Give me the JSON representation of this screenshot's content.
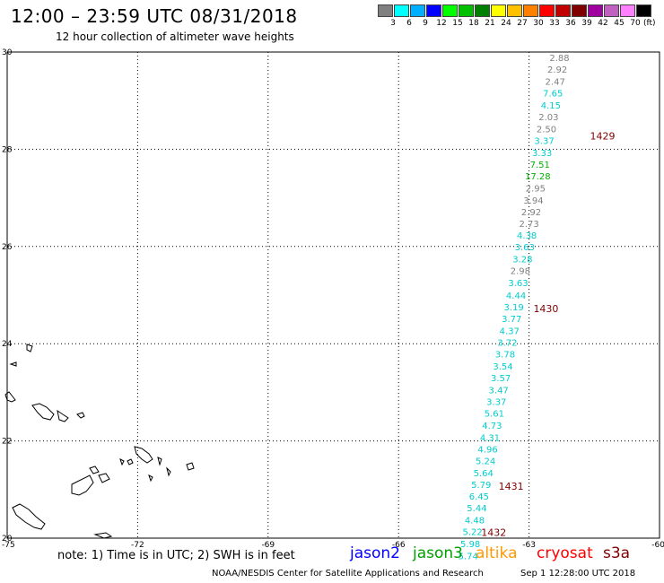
{
  "header": {
    "title": "12:00 – 23:59 UTC 08/31/2018",
    "subtitle": "12 hour collection of altimeter wave heights"
  },
  "legend": {
    "colors": [
      "#808080",
      "#00ffff",
      "#00b0ff",
      "#0000ff",
      "#00ff00",
      "#00c000",
      "#008000",
      "#ffff00",
      "#ffc000",
      "#ff8000",
      "#ff0000",
      "#c00000",
      "#800000",
      "#a000a0",
      "#c060c0",
      "#ff80ff",
      "#000000"
    ],
    "labels": [
      "3",
      "6",
      "9",
      "12",
      "15",
      "18",
      "21",
      "24",
      "27",
      "30",
      "33",
      "36",
      "39",
      "42",
      "45",
      "70"
    ],
    "unit": "(ft)"
  },
  "map": {
    "lon_labels": [
      "-75",
      "-72",
      "-69",
      "-66",
      "-63",
      "-60"
    ],
    "lat_labels": [
      "30",
      "28",
      "26",
      "24",
      "22",
      "20"
    ],
    "lon_range": [
      -75,
      -60
    ],
    "lat_range": [
      20,
      30
    ],
    "track_labels": [
      {
        "text": "1429",
        "lon": -61.6,
        "lat": 28.2,
        "color": "#800000"
      },
      {
        "text": "1430",
        "lon": -62.9,
        "lat": 24.65,
        "color": "#800000"
      },
      {
        "text": "1431",
        "lon": -63.7,
        "lat": 21.0,
        "color": "#800000"
      },
      {
        "text": "1432",
        "lon": -64.1,
        "lat": 20.05,
        "color": "#800000"
      }
    ],
    "wave_heights": [
      {
        "value": "2.88",
        "color": "#808080",
        "lat": 29.82,
        "lon": -62.3
      },
      {
        "value": "2.92",
        "color": "#808080",
        "lat": 29.58,
        "lon": -62.35
      },
      {
        "value": "2.47",
        "color": "#808080",
        "lat": 29.33,
        "lon": -62.4
      },
      {
        "value": "7.65",
        "color": "#00cccc",
        "lat": 29.09,
        "lon": -62.45
      },
      {
        "value": "4.15",
        "color": "#00cccc",
        "lat": 28.84,
        "lon": -62.5
      },
      {
        "value": "2.03",
        "color": "#808080",
        "lat": 28.6,
        "lon": -62.55
      },
      {
        "value": "2.50",
        "color": "#808080",
        "lat": 28.35,
        "lon": -62.6
      },
      {
        "value": "3.37",
        "color": "#00cccc",
        "lat": 28.11,
        "lon": -62.65
      },
      {
        "value": "3.33",
        "color": "#00cccc",
        "lat": 27.86,
        "lon": -62.7
      },
      {
        "value": "7.51",
        "color": "#00b000",
        "lat": 27.62,
        "lon": -62.75
      },
      {
        "value": "17.28",
        "color": "#00b000",
        "lat": 27.38,
        "lon": -62.8
      },
      {
        "value": "2.95",
        "color": "#808080",
        "lat": 27.13,
        "lon": -62.85
      },
      {
        "value": "3.94",
        "color": "#808080",
        "lat": 26.88,
        "lon": -62.9
      },
      {
        "value": "2.92",
        "color": "#808080",
        "lat": 26.64,
        "lon": -62.95
      },
      {
        "value": "2.73",
        "color": "#808080",
        "lat": 26.4,
        "lon": -63.0
      },
      {
        "value": "4.38",
        "color": "#00cccc",
        "lat": 26.16,
        "lon": -63.05
      },
      {
        "value": "3.63",
        "color": "#00cccc",
        "lat": 25.92,
        "lon": -63.1
      },
      {
        "value": "3.28",
        "color": "#00cccc",
        "lat": 25.67,
        "lon": -63.15
      },
      {
        "value": "2.98",
        "color": "#808080",
        "lat": 25.43,
        "lon": -63.2
      },
      {
        "value": "3.63",
        "color": "#00cccc",
        "lat": 25.18,
        "lon": -63.25
      },
      {
        "value": "4.44",
        "color": "#00cccc",
        "lat": 24.93,
        "lon": -63.3
      },
      {
        "value": "3.19",
        "color": "#00cccc",
        "lat": 24.69,
        "lon": -63.35
      },
      {
        "value": "3.77",
        "color": "#00cccc",
        "lat": 24.45,
        "lon": -63.4
      },
      {
        "value": "4.37",
        "color": "#00cccc",
        "lat": 24.2,
        "lon": -63.45
      },
      {
        "value": "3.72",
        "color": "#00cccc",
        "lat": 23.96,
        "lon": -63.5
      },
      {
        "value": "3.78",
        "color": "#00cccc",
        "lat": 23.72,
        "lon": -63.55
      },
      {
        "value": "3.54",
        "color": "#00cccc",
        "lat": 23.47,
        "lon": -63.6
      },
      {
        "value": "3.57",
        "color": "#00cccc",
        "lat": 23.23,
        "lon": -63.65
      },
      {
        "value": "3.47",
        "color": "#00cccc",
        "lat": 22.98,
        "lon": -63.7
      },
      {
        "value": "3.37",
        "color": "#00cccc",
        "lat": 22.74,
        "lon": -63.75
      },
      {
        "value": "5.61",
        "color": "#00cccc",
        "lat": 22.5,
        "lon": -63.8
      },
      {
        "value": "4.73",
        "color": "#00cccc",
        "lat": 22.25,
        "lon": -63.85
      },
      {
        "value": "4.31",
        "color": "#00cccc",
        "lat": 22.0,
        "lon": -63.9
      },
      {
        "value": "4.96",
        "color": "#00cccc",
        "lat": 21.76,
        "lon": -63.95
      },
      {
        "value": "5.24",
        "color": "#00cccc",
        "lat": 21.52,
        "lon": -64.0
      },
      {
        "value": "5.64",
        "color": "#00cccc",
        "lat": 21.27,
        "lon": -64.05
      },
      {
        "value": "5.79",
        "color": "#00cccc",
        "lat": 21.03,
        "lon": -64.1
      },
      {
        "value": "6.45",
        "color": "#00cccc",
        "lat": 20.79,
        "lon": -64.15
      },
      {
        "value": "5.44",
        "color": "#00cccc",
        "lat": 20.55,
        "lon": -64.2
      },
      {
        "value": "4.48",
        "color": "#00cccc",
        "lat": 20.3,
        "lon": -64.25
      },
      {
        "value": "5.22",
        "color": "#00cccc",
        "lat": 20.06,
        "lon": -64.3
      },
      {
        "value": "5.98",
        "color": "#00cccc",
        "lat": 19.82,
        "lon": -64.35
      },
      {
        "value": "5.74",
        "color": "#00cccc",
        "lat": 19.57,
        "lon": -64.4
      }
    ]
  },
  "footer": {
    "note": "note: 1) Time is in UTC; 2) SWH is in feet",
    "satellites": [
      {
        "name": "jason2",
        "color": "#0000ff"
      },
      {
        "name": "jason3",
        "color": "#00a000"
      },
      {
        "name": "altika",
        "color": "#ff9900"
      },
      {
        "name": "cryosat",
        "color": "#ff0000"
      },
      {
        "name": "s3a",
        "color": "#800000"
      }
    ],
    "credit": "NOAA/NESDIS Center for Satellite Applications and Research",
    "timestamp": "Sep  1 12:28:00 UTC 2018"
  }
}
